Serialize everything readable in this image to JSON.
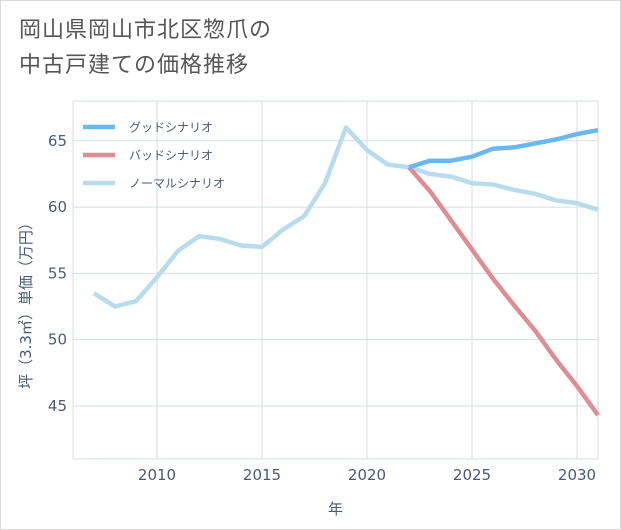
{
  "title": {
    "line1": "岡山県岡山市北区惣爪の",
    "line2": "中古戸建ての価格推移"
  },
  "chart_data": {
    "type": "line",
    "xlabel": "年",
    "ylabel": "坪（3.3㎡）単価（万円）",
    "xlim": [
      2006,
      2031
    ],
    "ylim": [
      41,
      68
    ],
    "xticks": [
      2010,
      2015,
      2020,
      2025,
      2030
    ],
    "yticks": [
      45,
      50,
      55,
      60,
      65
    ],
    "grid": true,
    "legend_position": "top-left",
    "series": [
      {
        "name": "グッドシナリオ",
        "color": "#6cb8ee",
        "x": [
          2022,
          2023,
          2024,
          2025,
          2026,
          2027,
          2028,
          2029,
          2030,
          2031
        ],
        "values": [
          63.0,
          63.5,
          63.5,
          63.8,
          64.4,
          64.5,
          64.8,
          65.1,
          65.5,
          65.8
        ]
      },
      {
        "name": "バッドシナリオ",
        "color": "#de8e93",
        "x": [
          2022,
          2023,
          2024,
          2025,
          2026,
          2027,
          2028,
          2029,
          2030,
          2031
        ],
        "values": [
          63.0,
          61.2,
          59.0,
          56.8,
          54.6,
          52.6,
          50.7,
          48.5,
          46.5,
          44.3
        ]
      },
      {
        "name": "ノーマルシナリオ",
        "color": "#b8dced",
        "x": [
          2007,
          2008,
          2009,
          2010,
          2011,
          2012,
          2013,
          2014,
          2015,
          2016,
          2017,
          2018,
          2019,
          2020,
          2021,
          2022,
          2023,
          2024,
          2025,
          2026,
          2027,
          2028,
          2029,
          2030,
          2031
        ],
        "values": [
          53.5,
          52.5,
          52.9,
          54.7,
          56.7,
          57.8,
          57.6,
          57.1,
          57.0,
          58.3,
          59.3,
          61.8,
          66.0,
          64.3,
          63.2,
          63.0,
          62.5,
          62.3,
          61.8,
          61.7,
          61.3,
          61.0,
          60.5,
          60.3,
          59.8
        ]
      }
    ]
  }
}
